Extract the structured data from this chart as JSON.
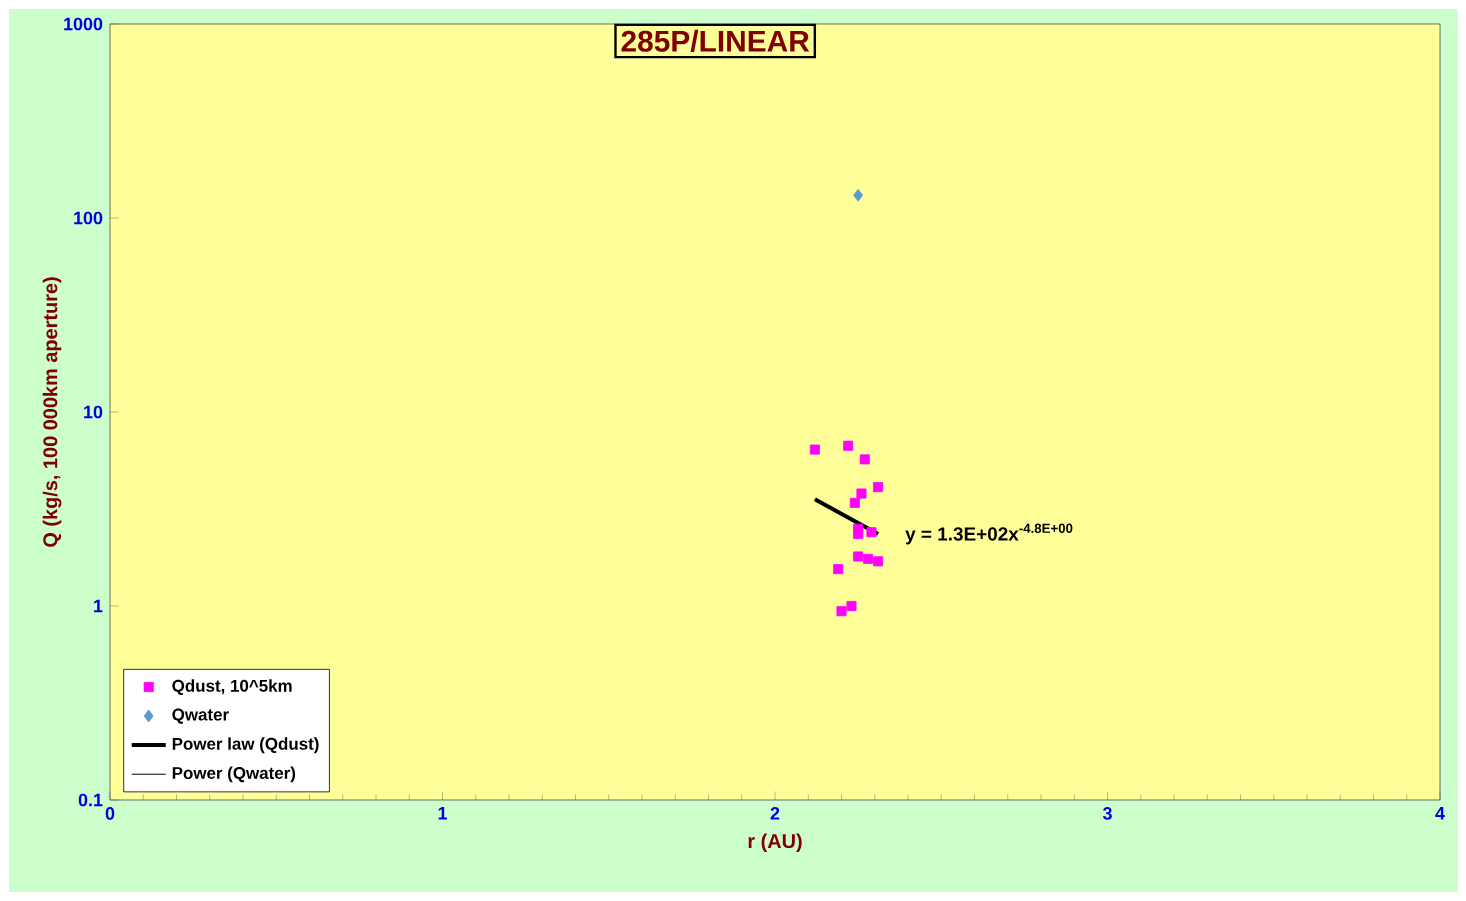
{
  "chart_data": {
    "type": "scatter",
    "title": "285P/LINEAR",
    "xlabel": "r (AU)",
    "ylabel": "Q (kg/s, 100 000km aperture)",
    "log": "y",
    "xlim": [
      0,
      4
    ],
    "xticks": [
      0,
      1,
      2,
      3,
      4
    ],
    "ylim": [
      0.1,
      1000
    ],
    "yticks": [
      0.1,
      1,
      10,
      100,
      1000
    ],
    "grid": false,
    "legend": "bottom left",
    "series": [
      {
        "name": "Qdust, 10^5km",
        "color": "#ff00ff",
        "marker": "square",
        "x": [
          2.12,
          2.22,
          2.27,
          2.31,
          2.26,
          2.24,
          2.25,
          2.25,
          2.29,
          2.25,
          2.28,
          2.31,
          2.19,
          2.23,
          2.2
        ],
        "values": [
          6.4,
          6.7,
          5.7,
          4.1,
          3.8,
          3.4,
          2.5,
          2.35,
          2.4,
          1.8,
          1.75,
          1.7,
          1.55,
          1.0,
          0.94
        ]
      },
      {
        "name": "Qwater",
        "color": "#5b9bd5",
        "marker": "diamond",
        "x": [
          2.25
        ],
        "values": [
          131
        ]
      },
      {
        "name": "Power law (Qdust)",
        "type": "line",
        "color": "#000000",
        "marker": "none",
        "line_style": "solid",
        "x": [
          2.12,
          2.31
        ],
        "values": [
          3.55,
          2.35
        ]
      },
      {
        "name": "Power (Qwater)",
        "type": "line",
        "color": "#000000",
        "marker": "none",
        "line_style": "solid"
      }
    ],
    "annotations": [
      {
        "text": "y = 1.3E+02x$^{-4.8E+00}$",
        "x": 2.31,
        "y": 2.35
      }
    ]
  }
}
